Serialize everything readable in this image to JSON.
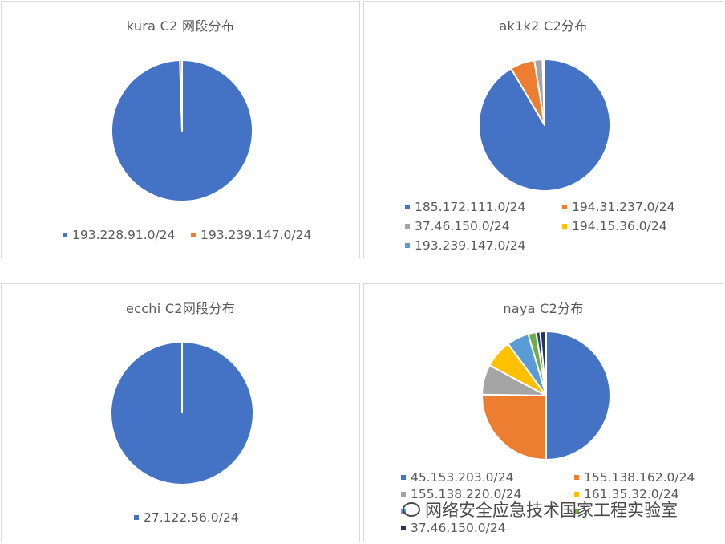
{
  "chart_data": [
    {
      "type": "pie",
      "title": "kura C2 网段分布",
      "categories": [
        "193.228.91.0/24",
        "193.239.147.0/24"
      ],
      "values": [
        99.5,
        0.5
      ],
      "colors": [
        "#4472C4",
        "#ED7D31"
      ],
      "legend_position": "bottom"
    },
    {
      "type": "pie",
      "title": "ak1k2 C2分布",
      "categories": [
        "185.172.111.0/24",
        "194.31.237.0/24",
        "37.46.150.0/24",
        "194.15.36.0/24",
        "193.239.147.0/24"
      ],
      "values": [
        91.5,
        6.0,
        2.0,
        0.2,
        0.3
      ],
      "colors": [
        "#4472C4",
        "#ED7D31",
        "#A5A5A5",
        "#FFC000",
        "#5B9BD5"
      ],
      "legend_position": "bottom"
    },
    {
      "type": "pie",
      "title": "ecchi C2网段分布",
      "categories": [
        "27.122.56.0/24"
      ],
      "values": [
        100
      ],
      "colors": [
        "#4472C4"
      ],
      "legend_position": "bottom"
    },
    {
      "type": "pie",
      "title": "naya C2分布",
      "categories": [
        "45.153.203.0/24",
        "155.138.162.0/24",
        "155.138.220.0/24",
        "161.35.32.0/24",
        "",
        "",
        "",
        "37.46.150.0/24"
      ],
      "values": [
        49.5,
        25.0,
        7.5,
        7.0,
        5.5,
        2.0,
        1.0,
        1.5
      ],
      "colors": [
        "#4472C4",
        "#ED7D31",
        "#A5A5A5",
        "#FFC000",
        "#5B9BD5",
        "#70AD47",
        "#264478",
        "#1F3864"
      ],
      "legend_position": "bottom"
    }
  ],
  "legend_visible": [
    [
      "193.228.91.0/24",
      "193.239.147.0/24"
    ],
    [
      "185.172.111.0/24",
      "194.31.237.0/24",
      "37.46.150.0/24",
      "194.15.36.0/24",
      "193.239.147.0/24"
    ],
    [
      "27.122.56.0/24"
    ],
    [
      "45.153.203.0/24",
      "155.138.162.0/24",
      "155.138.220.0/24",
      "161.35.32.0/24",
      "37.46.150.0/24"
    ]
  ],
  "watermark": {
    "text": "网络安全应急技术国家工程实验室",
    "icon": "wechat-icon"
  }
}
